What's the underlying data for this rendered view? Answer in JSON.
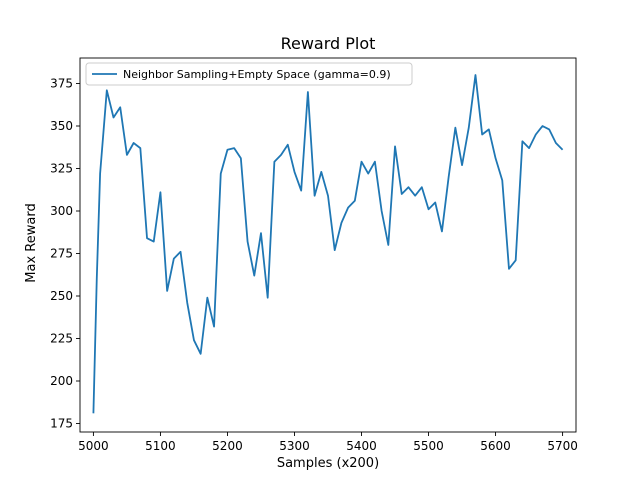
{
  "chart_data": {
    "type": "line",
    "title": "Reward Plot",
    "xlabel": "Samples (x200)",
    "ylabel": "Max Reward",
    "xlim": [
      4980,
      5720
    ],
    "ylim": [
      170,
      390
    ],
    "xticks": [
      5000,
      5100,
      5200,
      5300,
      5400,
      5500,
      5600,
      5700
    ],
    "yticks": [
      175,
      200,
      225,
      250,
      275,
      300,
      325,
      350,
      375
    ],
    "legend_position": "top-left",
    "grid": false,
    "series": [
      {
        "name": "Neighbor Sampling+Empty Space (gamma=0.9)",
        "color": "#1f77b4",
        "x": [
          5000,
          5005,
          5010,
          5020,
          5030,
          5040,
          5050,
          5060,
          5070,
          5080,
          5090,
          5100,
          5110,
          5120,
          5130,
          5140,
          5150,
          5160,
          5170,
          5180,
          5190,
          5200,
          5210,
          5220,
          5230,
          5240,
          5250,
          5260,
          5270,
          5280,
          5290,
          5300,
          5310,
          5320,
          5330,
          5340,
          5350,
          5360,
          5370,
          5380,
          5390,
          5400,
          5410,
          5420,
          5430,
          5440,
          5450,
          5460,
          5470,
          5480,
          5490,
          5500,
          5510,
          5520,
          5530,
          5540,
          5550,
          5560,
          5570,
          5580,
          5590,
          5600,
          5610,
          5620,
          5630,
          5640,
          5650,
          5660,
          5670,
          5680,
          5690,
          5700
        ],
        "y": [
          181,
          260,
          322,
          371,
          355,
          361,
          333,
          340,
          337,
          284,
          282,
          311,
          253,
          272,
          276,
          246,
          224,
          216,
          249,
          232,
          322,
          336,
          337,
          331,
          282,
          262,
          287,
          249,
          329,
          333,
          339,
          323,
          312,
          370,
          309,
          323,
          309,
          277,
          293,
          302,
          306,
          329,
          322,
          329,
          300,
          280,
          338,
          310,
          314,
          309,
          314,
          301,
          305,
          288,
          320,
          349,
          327,
          349,
          380,
          345,
          348,
          331,
          318,
          266,
          271,
          341,
          337,
          345,
          350,
          348,
          340,
          336
        ]
      }
    ]
  }
}
